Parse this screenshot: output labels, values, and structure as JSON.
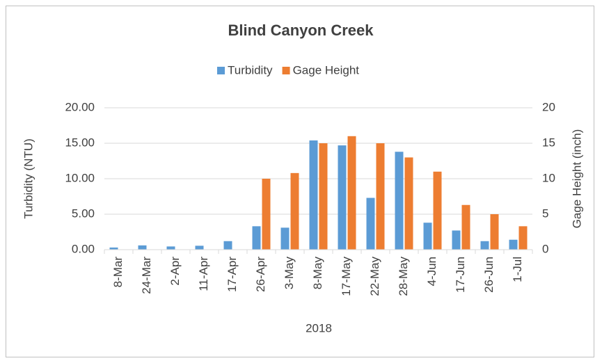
{
  "chart_data": {
    "type": "bar",
    "title": "Blind Canyon Creek",
    "x_label": "2018",
    "y_label": "Turbidity (NTU)",
    "y2_label": "Gage Height (inch)",
    "categories": [
      "8-Mar",
      "24-Mar",
      "2-Apr",
      "11-Apr",
      "17-Apr",
      "26-Apr",
      "3-May",
      "8-May",
      "17-May",
      "22-May",
      "28-May",
      "4-Jun",
      "17-Jun",
      "26-Jun",
      "1-Jul"
    ],
    "series": [
      {
        "name": "Turbidity",
        "color": "#5b9bd5",
        "values": [
          0.3,
          0.6,
          0.45,
          0.55,
          1.2,
          3.3,
          3.1,
          15.4,
          14.7,
          7.3,
          13.8,
          3.8,
          2.7,
          1.2,
          1.4
        ]
      },
      {
        "name": "Gage Height",
        "color": "#ed7d31",
        "axis": "y2",
        "values": [
          null,
          null,
          null,
          null,
          null,
          10,
          10.8,
          15,
          16,
          15,
          13,
          11,
          6.3,
          5,
          3.3
        ]
      }
    ],
    "ylim": [
      0,
      20
    ],
    "yticks": [
      {
        "value": 0,
        "label": "0.00"
      },
      {
        "value": 5,
        "label": "5.00"
      },
      {
        "value": 10,
        "label": "10.00"
      },
      {
        "value": 15,
        "label": "15.00"
      },
      {
        "value": 20,
        "label": "20.00"
      }
    ],
    "y2lim": [
      0,
      20
    ],
    "y2ticks": [
      0,
      5,
      10,
      15,
      20
    ],
    "grid": true,
    "legend": "top"
  }
}
